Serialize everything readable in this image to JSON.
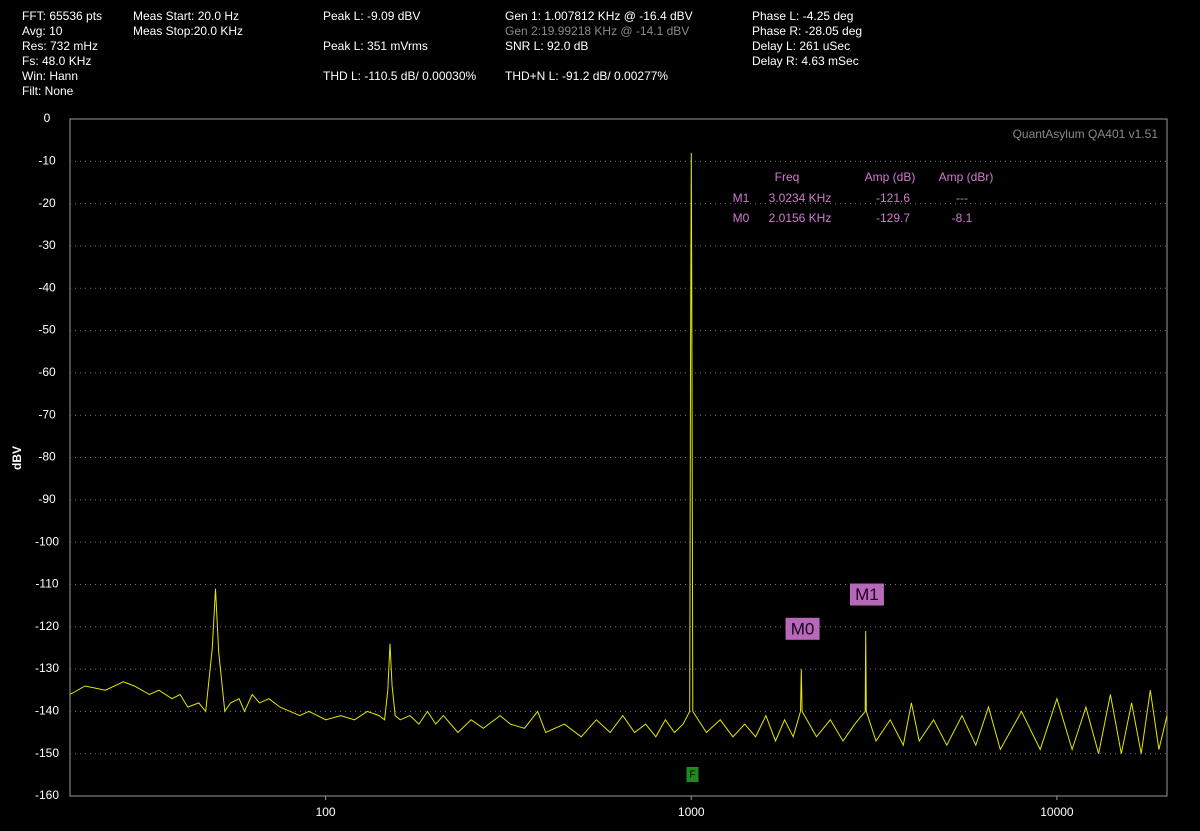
{
  "header": {
    "columns": [
      [
        "FFT: 65536 pts",
        "Avg: 10",
        "Res: 732 mHz",
        "Fs: 48.0 KHz",
        "Win: Hann",
        "Filt: None"
      ],
      [
        "Meas Start: 20.0 Hz",
        "Meas Stop:20.0 KHz"
      ],
      [
        "Peak L: -9.09 dBV",
        "Peak L: 351 mVrms",
        "THD L: -110.5 dB/ 0.00030%"
      ],
      [
        "Gen 1: 1.007812 KHz @ -16.4  dBV",
        "Gen 2:19.99218 KHz @ -14.1  dBV",
        "SNR L: 92.0 dB",
        "THD+N L: -91.2 dB/ 0.00277%"
      ],
      [
        "Phase L: -4.25 deg",
        "Phase R: -28.05 deg",
        "Delay L: 261 uSec",
        "Delay R: 4.63 mSec"
      ]
    ]
  },
  "chart_data": {
    "type": "line",
    "y_label": "dBV",
    "watermark": "QuantAsylum QA401 v1.51",
    "log_x": true,
    "grid": true,
    "xlim": [
      20,
      20000
    ],
    "ylim": [
      -160,
      0
    ],
    "xticks": [
      100,
      1000,
      10000
    ],
    "yticks": [
      0,
      -10,
      -20,
      -30,
      -40,
      -50,
      -60,
      -70,
      -80,
      -90,
      -100,
      -110,
      -120,
      -130,
      -140,
      -150,
      -160
    ],
    "series": [
      {
        "name": "L",
        "color": "#e6e600",
        "x": [
          20,
          22,
          25,
          28,
          30,
          33,
          35,
          38,
          40,
          42,
          45,
          47,
          49,
          50,
          51,
          53,
          55,
          58,
          60,
          63,
          66,
          70,
          75,
          80,
          85,
          90,
          95,
          100,
          110,
          120,
          130,
          140,
          145,
          148,
          150,
          152,
          155,
          160,
          170,
          180,
          190,
          200,
          210,
          230,
          250,
          270,
          300,
          320,
          350,
          380,
          400,
          450,
          500,
          550,
          600,
          650,
          700,
          750,
          800,
          850,
          900,
          950,
          990,
          995,
          1000,
          1005,
          1010,
          1100,
          1200,
          1300,
          1400,
          1500,
          1600,
          1700,
          1800,
          1900,
          1990,
          2000,
          2010,
          2200,
          2400,
          2600,
          2800,
          2990,
          3000,
          3010,
          3200,
          3500,
          3800,
          4000,
          4200,
          4600,
          5000,
          5500,
          6000,
          6500,
          7000,
          8000,
          9000,
          10000,
          11000,
          12000,
          13000,
          14000,
          15000,
          16000,
          17000,
          18000,
          19000,
          20000
        ],
        "values": [
          -136,
          -134,
          -135,
          -133,
          -134,
          -136,
          -135,
          -137,
          -136,
          -139,
          -138,
          -140,
          -125,
          -111,
          -126,
          -140,
          -138,
          -137,
          -140,
          -136,
          -138,
          -137,
          -139,
          -140,
          -141,
          -140,
          -141,
          -142,
          -141,
          -142,
          -140,
          -141,
          -142,
          -135,
          -124,
          -134,
          -141,
          -142,
          -141,
          -143,
          -140,
          -143,
          -141,
          -145,
          -142,
          -144,
          -141,
          -143,
          -144,
          -140,
          -145,
          -143,
          -146,
          -142,
          -145,
          -141,
          -145,
          -143,
          -146,
          -142,
          -145,
          -143,
          -140,
          -60,
          -8,
          -60,
          -140,
          -145,
          -142,
          -146,
          -143,
          -146,
          -141,
          -147,
          -142,
          -146,
          -140,
          -130,
          -140,
          -146,
          -142,
          -147,
          -143,
          -140,
          -121,
          -140,
          -147,
          -142,
          -148,
          -138,
          -147,
          -142,
          -148,
          -141,
          -148,
          -139,
          -149,
          -140,
          -149,
          -137,
          -149,
          -139,
          -150,
          -136,
          -150,
          -138,
          -150,
          -135,
          -149,
          -141
        ]
      }
    ],
    "marker_table": {
      "headers": [
        "Freq",
        "Amp (dB)",
        "Amp (dBr)"
      ],
      "markers": [
        {
          "name": "M1",
          "freq": {
            "value": 3023.4,
            "label": "3.0234 KHz"
          },
          "amp": -121.6,
          "ampr": "---"
        },
        {
          "name": "M0",
          "freq": {
            "value": 2015.6,
            "label": "2.0156 KHz"
          },
          "amp": -129.7,
          "ampr": -8.1
        }
      ]
    },
    "fundamental": {
      "label": "F",
      "x": 1007.812
    }
  }
}
